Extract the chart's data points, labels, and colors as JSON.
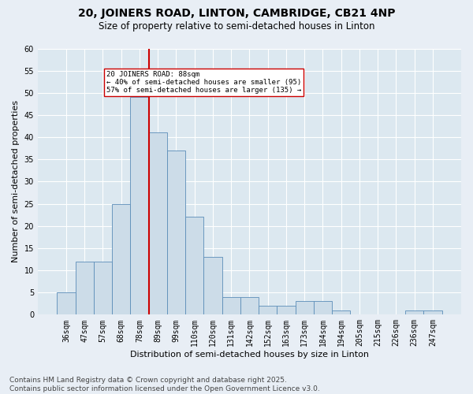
{
  "title_line1": "20, JOINERS ROAD, LINTON, CAMBRIDGE, CB21 4NP",
  "title_line2": "Size of property relative to semi-detached houses in Linton",
  "xlabel": "Distribution of semi-detached houses by size in Linton",
  "ylabel": "Number of semi-detached properties",
  "bar_labels": [
    "36sqm",
    "47sqm",
    "57sqm",
    "68sqm",
    "78sqm",
    "89sqm",
    "99sqm",
    "110sqm",
    "120sqm",
    "131sqm",
    "142sqm",
    "152sqm",
    "163sqm",
    "173sqm",
    "184sqm",
    "194sqm",
    "205sqm",
    "215sqm",
    "226sqm",
    "236sqm",
    "247sqm"
  ],
  "bar_values": [
    5,
    12,
    12,
    25,
    49,
    41,
    37,
    22,
    13,
    4,
    4,
    2,
    2,
    3,
    3,
    1,
    0,
    0,
    0,
    1,
    1
  ],
  "bar_color": "#ccdce8",
  "bar_edge_color": "#5b8db8",
  "vline_color": "#cc0000",
  "annotation_text": "20 JOINERS ROAD: 88sqm\n← 40% of semi-detached houses are smaller (95)\n57% of semi-detached houses are larger (135) →",
  "annotation_box_color": "#ffffff",
  "annotation_box_edge": "#cc0000",
  "ylim": [
    0,
    60
  ],
  "yticks": [
    0,
    5,
    10,
    15,
    20,
    25,
    30,
    35,
    40,
    45,
    50,
    55,
    60
  ],
  "footnote": "Contains HM Land Registry data © Crown copyright and database right 2025.\nContains public sector information licensed under the Open Government Licence v3.0.",
  "fig_bg_color": "#e8eef5",
  "bg_color": "#dce8f0",
  "grid_color": "#ffffff",
  "title_fontsize": 10,
  "subtitle_fontsize": 8.5,
  "axis_label_fontsize": 8,
  "tick_fontsize": 7,
  "footnote_fontsize": 6.5
}
